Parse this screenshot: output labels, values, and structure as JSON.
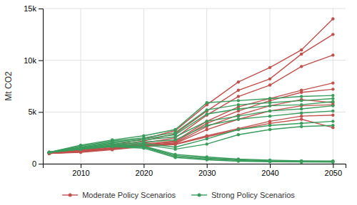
{
  "chart_data": {
    "type": "line",
    "y_label": "Mt CO2",
    "x": [
      2005,
      2010,
      2015,
      2020,
      2025,
      2030,
      2035,
      2040,
      2045,
      2050
    ],
    "xlim": [
      2004,
      2052
    ],
    "xticks": [
      2010,
      2020,
      2030,
      2040,
      2050
    ],
    "ylim": [
      0,
      15000
    ],
    "yticks": [
      0,
      {
        "value": 5000,
        "label": "5k"
      },
      {
        "value": 10000,
        "label": "10k"
      },
      {
        "value": 15000,
        "label": "15k"
      }
    ],
    "grid": true,
    "marker": "circle",
    "series": [
      {
        "name": "Moderate Policy Scenarios",
        "color": "#c0504d",
        "values": [
          1100,
          1350,
          1800,
          2400,
          3200,
          5700,
          7900,
          9300,
          11000,
          14000
        ]
      },
      {
        "name": "Moderate Policy Scenarios",
        "color": "#c0504d",
        "values": [
          1100,
          1300,
          1700,
          2200,
          2900,
          5100,
          7100,
          8200,
          10600,
          12500
        ]
      },
      {
        "name": "Moderate Policy Scenarios",
        "color": "#c0504d",
        "values": [
          1100,
          1250,
          1650,
          2000,
          2500,
          4700,
          6500,
          7600,
          9400,
          10500
        ]
      },
      {
        "name": "Moderate Policy Scenarios",
        "color": "#c0504d",
        "values": [
          1000,
          1200,
          1550,
          1900,
          2200,
          4100,
          5500,
          6300,
          7100,
          7800
        ]
      },
      {
        "name": "Moderate Policy Scenarios",
        "color": "#c0504d",
        "values": [
          1000,
          1200,
          1500,
          1850,
          2100,
          3900,
          5100,
          6100,
          6900,
          7200
        ]
      },
      {
        "name": "Moderate Policy Scenarios",
        "color": "#c0504d",
        "values": [
          1000,
          1200,
          1500,
          1800,
          2000,
          3600,
          4700,
          5600,
          6200,
          5900
        ]
      },
      {
        "name": "Moderate Policy Scenarios",
        "color": "#c0504d",
        "values": [
          1000,
          1150,
          1450,
          1750,
          1950,
          3300,
          4300,
          5100,
          5600,
          5700
        ]
      },
      {
        "name": "Moderate Policy Scenarios",
        "color": "#c0504d",
        "values": [
          1000,
          1150,
          1400,
          1700,
          1900,
          2700,
          3400,
          4100,
          4600,
          4700
        ]
      },
      {
        "name": "Moderate Policy Scenarios",
        "color": "#c0504d",
        "values": [
          1000,
          1100,
          1350,
          1650,
          1850,
          2600,
          3300,
          3900,
          4300,
          3500
        ]
      },
      {
        "name": "Strong Policy Scenarios",
        "color": "#3a9c5d",
        "values": [
          1100,
          1800,
          2300,
          2700,
          3300,
          5900,
          6100,
          6300,
          6500,
          6600
        ]
      },
      {
        "name": "Strong Policy Scenarios",
        "color": "#3a9c5d",
        "values": [
          1100,
          1700,
          2200,
          2500,
          3000,
          5200,
          5700,
          5900,
          6100,
          6300
        ]
      },
      {
        "name": "Strong Policy Scenarios",
        "color": "#3a9c5d",
        "values": [
          1100,
          1600,
          2100,
          2400,
          2800,
          4800,
          5300,
          5600,
          5700,
          6000
        ]
      },
      {
        "name": "Strong Policy Scenarios",
        "color": "#3a9c5d",
        "values": [
          1100,
          1550,
          2000,
          2300,
          2600,
          4100,
          4600,
          5100,
          5300,
          5600
        ]
      },
      {
        "name": "Strong Policy Scenarios",
        "color": "#3a9c5d",
        "values": [
          1100,
          1500,
          1900,
          2100,
          2300,
          3700,
          4300,
          4600,
          4900,
          5100
        ]
      },
      {
        "name": "Strong Policy Scenarios",
        "color": "#3a9c5d",
        "values": [
          1100,
          1500,
          1900,
          1950,
          1600,
          2400,
          3300,
          3700,
          3900,
          4100
        ]
      },
      {
        "name": "Strong Policy Scenarios",
        "color": "#3a9c5d",
        "values": [
          1100,
          1450,
          1800,
          1850,
          1400,
          1900,
          2800,
          3300,
          3600,
          3700
        ]
      },
      {
        "name": "Strong Policy Scenarios",
        "color": "#3a9c5d",
        "values": [
          1100,
          1400,
          1750,
          1700,
          900,
          650,
          450,
          350,
          280,
          270
        ]
      },
      {
        "name": "Strong Policy Scenarios",
        "color": "#3a9c5d",
        "values": [
          1100,
          1400,
          1700,
          1650,
          800,
          550,
          380,
          280,
          230,
          220
        ]
      },
      {
        "name": "Strong Policy Scenarios",
        "color": "#3a9c5d",
        "values": [
          1100,
          1400,
          1700,
          1600,
          700,
          450,
          320,
          230,
          190,
          185
        ]
      },
      {
        "name": "Strong Policy Scenarios",
        "color": "#3a9c5d",
        "values": [
          1100,
          1400,
          1650,
          1500,
          600,
          380,
          240,
          190,
          160,
          150
        ]
      }
    ]
  }
}
